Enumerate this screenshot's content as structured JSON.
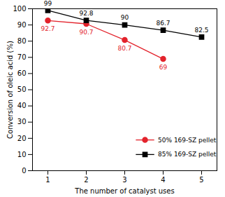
{
  "chart_data": {
    "type": "line",
    "x_label": "The number of catalyst uses",
    "y_label": "Conversion of oleic acid (%)",
    "x": [
      1,
      2,
      3,
      4,
      5
    ],
    "series": [
      {
        "name": "50% 169-SZ pellet",
        "color": "#e3232c",
        "marker": "circle",
        "values": [
          92.7,
          90.7,
          80.7,
          69,
          null
        ]
      },
      {
        "name": "85% 169-SZ pellet",
        "color": "#000000",
        "marker": "square",
        "values": [
          99,
          92.8,
          90,
          86.7,
          82.5
        ]
      }
    ],
    "xlim": [
      0.6,
      5.4
    ],
    "xticks": [
      1,
      2,
      3,
      4,
      5
    ],
    "ylim": [
      0,
      100
    ],
    "yticks": [
      0,
      10,
      20,
      30,
      40,
      50,
      60,
      70,
      80,
      90,
      100
    ],
    "grid": false,
    "legend": "lower right",
    "data_labels": true
  }
}
